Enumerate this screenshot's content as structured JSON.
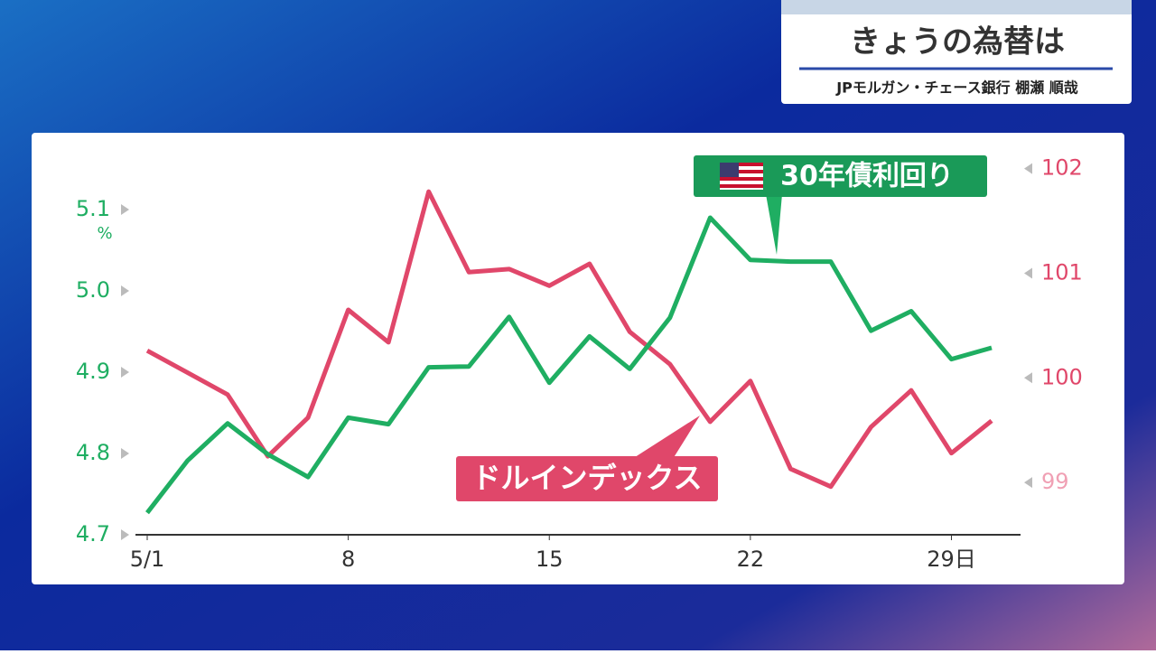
{
  "header": {
    "title": "きょうの為替は",
    "subtitle": "JPモルガン・チェース銀行 棚瀬 順哉"
  },
  "chart_data": {
    "type": "line",
    "categories": [
      "5/1",
      null,
      null,
      null,
      null,
      "8",
      null,
      null,
      null,
      null,
      "15",
      null,
      null,
      null,
      null,
      "22",
      null,
      null,
      null,
      null,
      "29日",
      null
    ],
    "series": [
      {
        "name": "30年債利回り",
        "color": "#1fae62",
        "axis": "y",
        "values": [
          4.727,
          4.791,
          4.837,
          4.799,
          4.771,
          4.844,
          4.836,
          4.906,
          4.907,
          4.968,
          4.887,
          4.944,
          4.904,
          4.967,
          5.09,
          5.038,
          5.036,
          5.036,
          4.951,
          4.975,
          4.916,
          4.93
        ]
      },
      {
        "name": "ドルインデックス",
        "color": "#e0476a",
        "axis": "y2",
        "values": [
          100.26,
          100.05,
          99.84,
          99.25,
          99.62,
          100.65,
          100.34,
          101.78,
          101.01,
          101.04,
          100.88,
          101.09,
          100.44,
          100.13,
          99.58,
          99.97,
          99.13,
          98.96,
          99.53,
          99.88,
          99.28,
          99.59
        ]
      }
    ],
    "y_unit": "%",
    "ylim": [
      4.7,
      5.18
    ],
    "yticks": [
      4.7,
      4.8,
      4.9,
      {
        "value": 5,
        "label": "5.0"
      },
      5.1
    ],
    "y2lim": [
      98.5,
      102.23
    ],
    "y2ticks": [
      99,
      100,
      101,
      102
    ]
  }
}
